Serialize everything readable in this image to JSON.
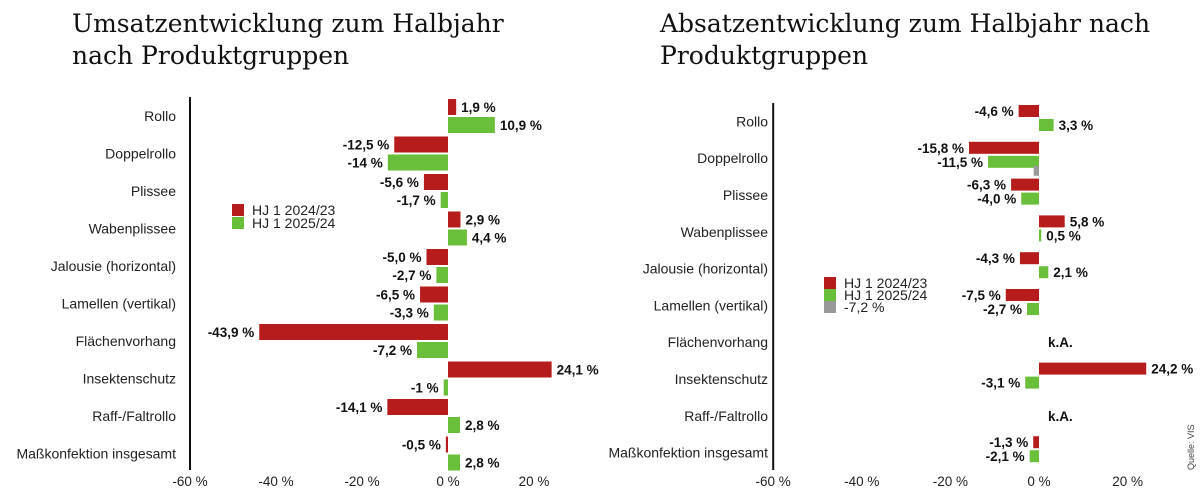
{
  "source": "Quelle: VIS",
  "chart_data": [
    {
      "type": "bar",
      "orientation": "horizontal",
      "title": "Umsatzentwicklung zum Halbjahr nach Produktgruppen",
      "categories": [
        "Rollo",
        "Doppelrollo",
        "Plissee",
        "Wabenplissee",
        "Jalousie (horizontal)",
        "Lamellen (vertikal)",
        "Flächenvorhang",
        "Insektenschutz",
        "Raff-/Faltrollo",
        "Maßkonfektion insgesamt"
      ],
      "series": [
        {
          "name": "HJ 1 2024/23",
          "color": "#b71c1c",
          "values": [
            1.9,
            -12.5,
            -5.6,
            2.9,
            -5.0,
            -6.5,
            -43.9,
            24.1,
            -14.1,
            -0.5
          ],
          "labels": [
            "1,9 %",
            "-12,5 %",
            "-5,6 %",
            "2,9 %",
            "-5,0 %",
            "-6,5 %",
            "-43,9 %",
            "24,1 %",
            "-14,1 %",
            "-0,5 %"
          ]
        },
        {
          "name": "HJ 1 2025/24",
          "color": "#6abf3a",
          "values": [
            10.9,
            -14,
            -1.7,
            4.4,
            -2.7,
            -3.3,
            -7.2,
            -1,
            2.8,
            2.8
          ],
          "labels": [
            "10,9 %",
            "-14 %",
            "-1,7 %",
            "4,4 %",
            "-2,7 %",
            "-3,3 %",
            "-7,2 %",
            "-1 %",
            "2,8 %",
            "2,8 %"
          ]
        }
      ],
      "xlim": [
        -60,
        24
      ],
      "xticks": [
        -60,
        -40,
        -20,
        0,
        20
      ],
      "xtick_labels": [
        "-60 %",
        "-40 %",
        "-20 %",
        "0 %",
        "20 %"
      ],
      "legend_position": "left-middle",
      "grid": false
    },
    {
      "type": "bar",
      "orientation": "horizontal",
      "title": "Absatzentwicklung zum Halbjahr nach Produktgruppen",
      "categories": [
        "Rollo",
        "Doppelrollo",
        "Plissee",
        "Wabenplissee",
        "Jalousie (horizontal)",
        "Lamellen (vertikal)",
        "Flächenvorhang",
        "Insektenschutz",
        "Raff-/Faltrollo",
        "Maßkonfektion insgesamt"
      ],
      "series": [
        {
          "name": "HJ 1 2024/23",
          "color": "#b71c1c",
          "values": [
            -4.6,
            -15.8,
            -6.3,
            5.8,
            -4.3,
            -7.5,
            null,
            24.2,
            null,
            -1.3
          ],
          "labels": [
            "-4,6 %",
            "-15,8 %",
            "-6,3 %",
            "5,8 %",
            "-4,3 %",
            "-7,5 %",
            "",
            "24,2 %",
            "",
            "-1,3 %"
          ]
        },
        {
          "name": "HJ 1 2025/24",
          "color": "#6abf3a",
          "values": [
            3.3,
            -11.5,
            -4.0,
            0.5,
            2.1,
            -2.7,
            null,
            -3.1,
            null,
            -2.1
          ],
          "labels": [
            "3,3 %",
            "-11,5 %",
            "-4,0 %",
            "0,5 %",
            "2,1 %",
            "-2,7 %",
            "",
            "-3,1 %",
            "",
            "-2,1 %"
          ]
        },
        {
          "name": "-7,2 %",
          "color": "#999999",
          "values": [
            null,
            -1.2,
            null,
            null,
            null,
            null,
            null,
            null,
            null,
            null
          ]
        }
      ],
      "na_label": "k.A.",
      "na_categories": [
        "Flächenvorhang",
        "Raff-/Faltrollo"
      ],
      "xlim": [
        -60,
        24
      ],
      "xticks": [
        -60,
        -40,
        -20,
        0,
        20
      ],
      "xtick_labels": [
        "-60 %",
        "-40 %",
        "-20 %",
        "0 %",
        "20 %"
      ],
      "legend_position": "left-middle",
      "grid": false
    }
  ]
}
